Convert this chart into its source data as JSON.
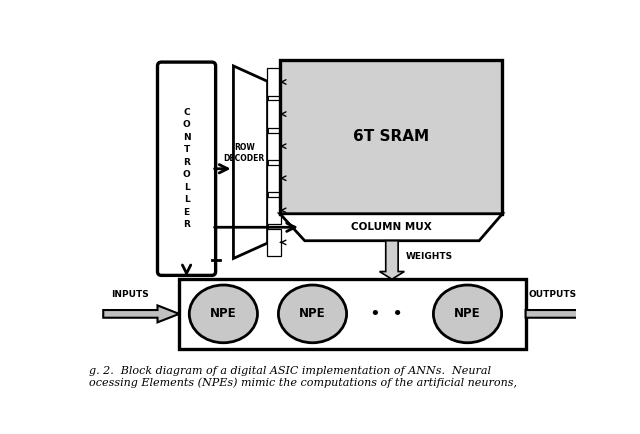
{
  "bg_color": "#ffffff",
  "block_color": "#ffffff",
  "sram_color": "#d0d0d0",
  "npe_ellipse_color": "#c8c8c8",
  "text_color": "#000000",
  "controller_text": "C\nO\nN\nT\nR\nO\nL\nL\nE\nR",
  "sram_text": "6T SRAM",
  "column_mux_text": "COLUMN MUX",
  "weights_text": "WEIGHTS",
  "inputs_text": "INPUTS",
  "outputs_text": "OUTPUTS",
  "npe_text": "NPE",
  "row_decoder_label": "ROW\nDECODER",
  "caption_line1": "g. 2.  Block diagram of a digital ASIC implementation of ANNs.  Neural",
  "caption_line2": "ocessing Elements (NPEs) mimic the computations of the artificial neurons,"
}
